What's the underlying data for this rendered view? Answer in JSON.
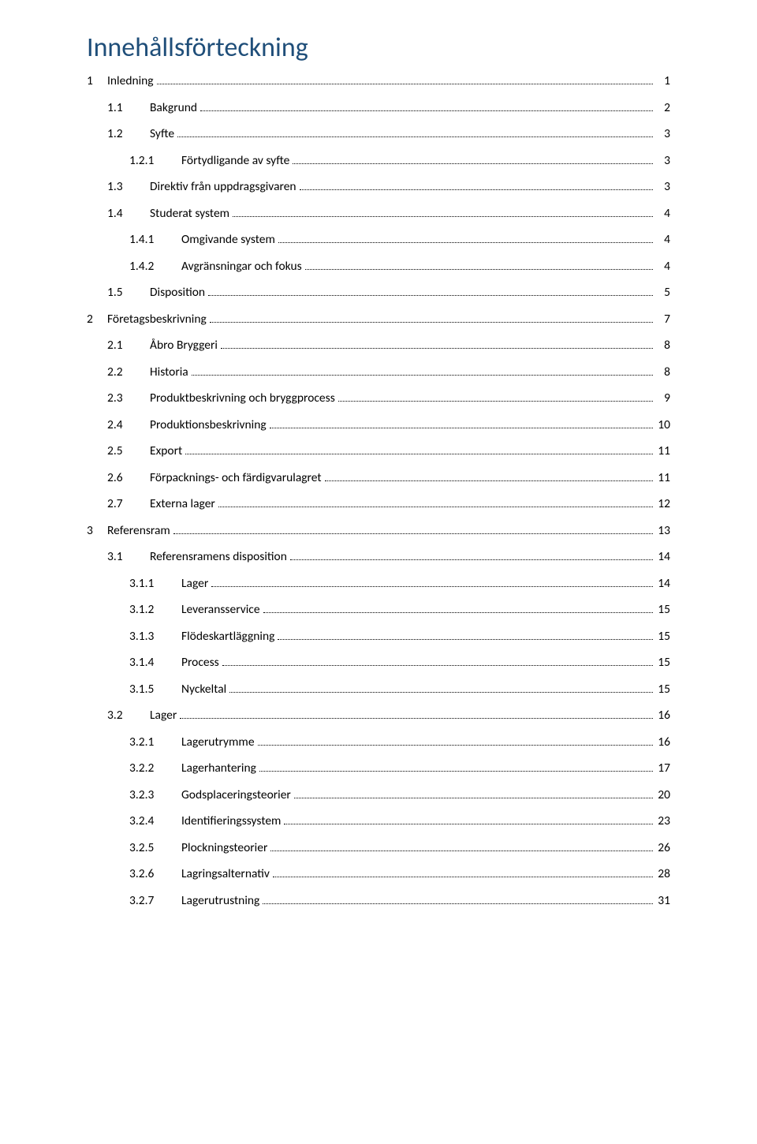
{
  "colors": {
    "title": "#1f4e79",
    "text": "#000000",
    "background": "#ffffff",
    "dots": "#000000"
  },
  "fonts": {
    "title_family": "Calibri",
    "title_size_pt": 26,
    "body_family": "Calibri",
    "body_size_pt": 11
  },
  "title": "Innehållsförteckning",
  "entries": [
    {
      "level": 1,
      "num": "1",
      "label": "Inledning",
      "page": "1"
    },
    {
      "level": 2,
      "num": "1.1",
      "label": "Bakgrund",
      "page": "2"
    },
    {
      "level": 2,
      "num": "1.2",
      "label": "Syfte",
      "page": "3"
    },
    {
      "level": 3,
      "num": "1.2.1",
      "label": "Förtydligande av syfte",
      "page": "3"
    },
    {
      "level": 2,
      "num": "1.3",
      "label": "Direktiv från uppdragsgivaren",
      "page": "3"
    },
    {
      "level": 2,
      "num": "1.4",
      "label": "Studerat system",
      "page": "4"
    },
    {
      "level": 3,
      "num": "1.4.1",
      "label": "Omgivande system",
      "page": "4"
    },
    {
      "level": 3,
      "num": "1.4.2",
      "label": "Avgränsningar och fokus",
      "page": "4"
    },
    {
      "level": 2,
      "num": "1.5",
      "label": "Disposition",
      "page": "5"
    },
    {
      "level": 1,
      "num": "2",
      "label": "Företagsbeskrivning",
      "page": "7"
    },
    {
      "level": 2,
      "num": "2.1",
      "label": "Åbro Bryggeri",
      "page": "8"
    },
    {
      "level": 2,
      "num": "2.2",
      "label": "Historia",
      "page": "8"
    },
    {
      "level": 2,
      "num": "2.3",
      "label": "Produktbeskrivning och bryggprocess",
      "page": "9"
    },
    {
      "level": 2,
      "num": "2.4",
      "label": "Produktionsbeskrivning",
      "page": "10"
    },
    {
      "level": 2,
      "num": "2.5",
      "label": "Export",
      "page": "11"
    },
    {
      "level": 2,
      "num": "2.6",
      "label": "Förpacknings- och färdigvarulagret",
      "page": "11"
    },
    {
      "level": 2,
      "num": "2.7",
      "label": "Externa lager",
      "page": "12"
    },
    {
      "level": 1,
      "num": "3",
      "label": "Referensram",
      "page": "13"
    },
    {
      "level": 2,
      "num": "3.1",
      "label": "Referensramens disposition",
      "page": "14"
    },
    {
      "level": 3,
      "num": "3.1.1",
      "label": "Lager",
      "page": "14"
    },
    {
      "level": 3,
      "num": "3.1.2",
      "label": "Leveransservice",
      "page": "15"
    },
    {
      "level": 3,
      "num": "3.1.3",
      "label": "Flödeskartläggning",
      "page": "15"
    },
    {
      "level": 3,
      "num": "3.1.4",
      "label": "Process",
      "page": "15"
    },
    {
      "level": 3,
      "num": "3.1.5",
      "label": "Nyckeltal",
      "page": "15"
    },
    {
      "level": 2,
      "num": "3.2",
      "label": "Lager",
      "page": "16"
    },
    {
      "level": 3,
      "num": "3.2.1",
      "label": "Lagerutrymme",
      "page": "16"
    },
    {
      "level": 3,
      "num": "3.2.2",
      "label": "Lagerhantering",
      "page": "17"
    },
    {
      "level": 3,
      "num": "3.2.3",
      "label": "Godsplaceringsteorier",
      "page": "20"
    },
    {
      "level": 3,
      "num": "3.2.4",
      "label": "Identifieringssystem",
      "page": "23"
    },
    {
      "level": 3,
      "num": "3.2.5",
      "label": "Plockningsteorier",
      "page": "26"
    },
    {
      "level": 3,
      "num": "3.2.6",
      "label": "Lagringsalternativ",
      "page": "28"
    },
    {
      "level": 3,
      "num": "3.2.7",
      "label": "Lagerutrustning",
      "page": "31"
    }
  ]
}
